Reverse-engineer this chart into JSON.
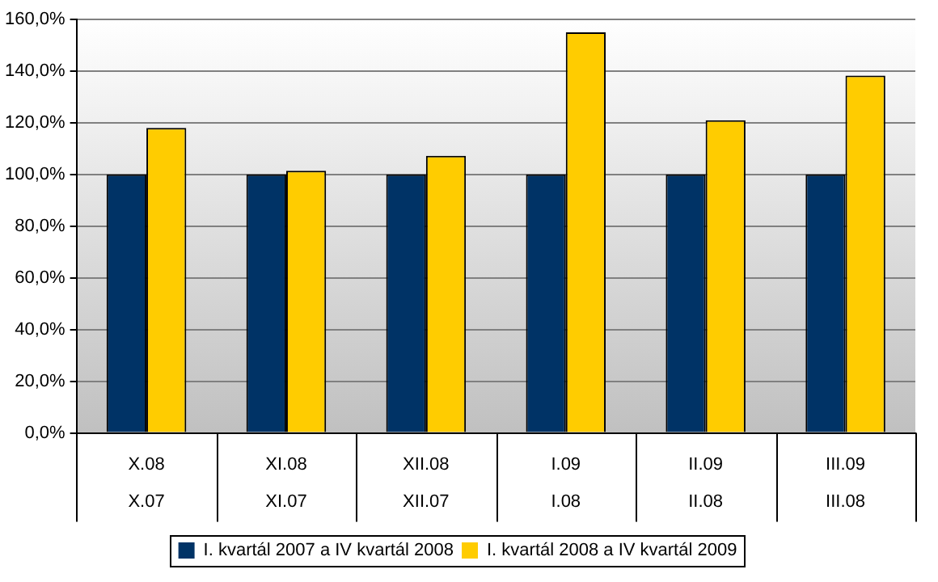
{
  "chart_data": {
    "type": "bar",
    "categories": [
      "X.08\nX.07",
      "XI.08\nXI.07",
      "XII.08\nXII.07",
      "I.09\nI.08",
      "II.09\nII.08",
      "III.09\nIII.08"
    ],
    "series": [
      {
        "name": "I. kvartál 2007 a IV kvartál 2008",
        "color": "#003366",
        "values": [
          100,
          100,
          100,
          100,
          100,
          100
        ]
      },
      {
        "name": "I. kvartál 2008 a IV kvartál 2009",
        "color": "#ffcc00",
        "values": [
          118,
          101.4,
          107.2,
          155,
          121,
          138.3
        ]
      }
    ],
    "ylim": [
      0,
      160
    ],
    "yticks": [
      {
        "value": 0,
        "label": "0,0%"
      },
      {
        "value": 20,
        "label": "20,0%"
      },
      {
        "value": 40,
        "label": "40,0%"
      },
      {
        "value": 60,
        "label": "60,0%"
      },
      {
        "value": 80,
        "label": "80,0%"
      },
      {
        "value": 100,
        "label": "100,0%"
      },
      {
        "value": 120,
        "label": "120,0%"
      },
      {
        "value": 140,
        "label": "140,0%"
      },
      {
        "value": 160,
        "label": "160,0%"
      }
    ],
    "grid": "y",
    "legend": "bottom"
  }
}
